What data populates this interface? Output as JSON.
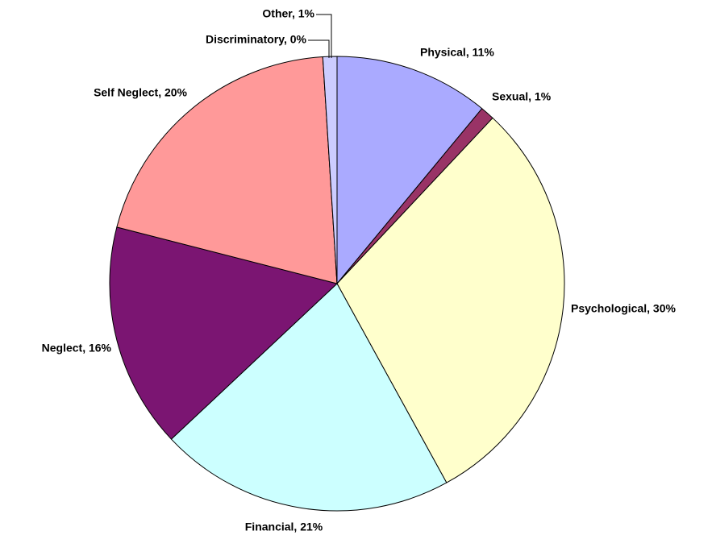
{
  "chart_data": {
    "type": "pie",
    "labels": [
      "Physical, 11%",
      "Sexual, 1%",
      "Psychological, 30%",
      "Financial, 21%",
      "Neglect, 16%",
      "Self Neglect, 20%",
      "Discriminatory, 0%",
      "Other, 1%"
    ],
    "values": [
      11,
      1,
      30,
      21,
      16,
      20,
      0,
      1
    ],
    "colors": [
      "#aaaaff",
      "#993366",
      "#ffffcc",
      "#ccffff",
      "#7b1572",
      "#ff9999",
      "#ffffff",
      "#ccccff"
    ]
  }
}
